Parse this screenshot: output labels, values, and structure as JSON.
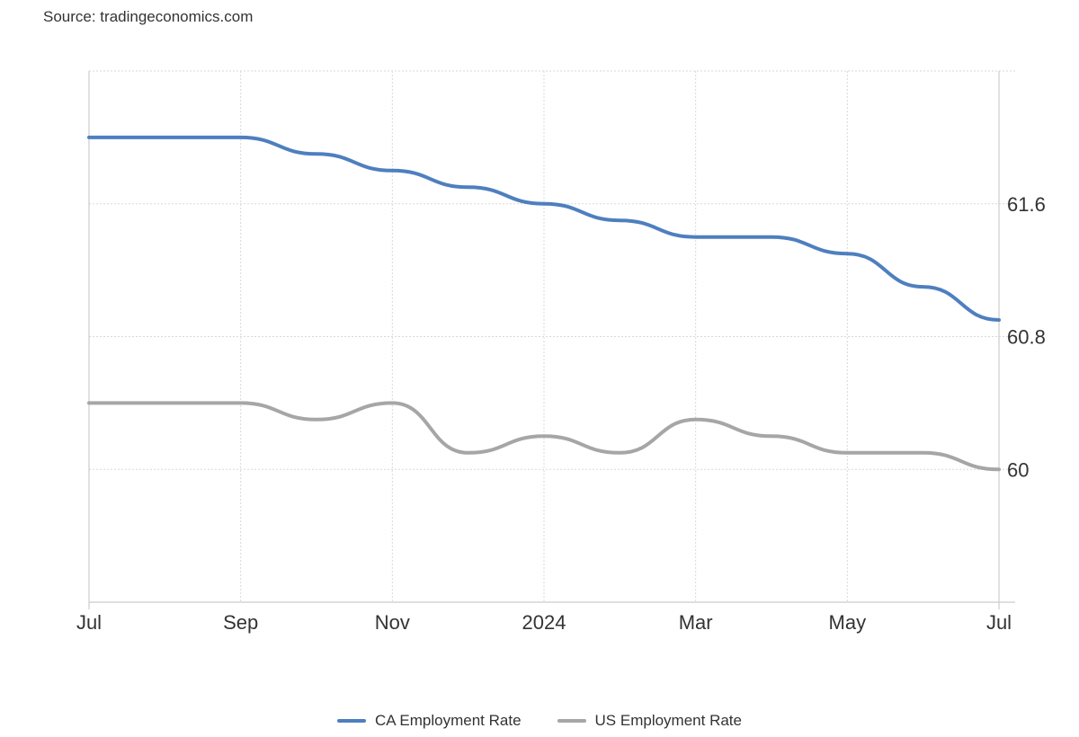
{
  "source_text": "Source: tradingeconomics.com",
  "colors": {
    "ca": "#4e7fbf",
    "us": "#a6a6a6",
    "grid": "#d9d9d9",
    "axis": "#cccccc"
  },
  "chart_data": {
    "type": "line",
    "title": "",
    "xlabel": "",
    "ylabel": "",
    "x": [
      "2023-07",
      "2023-08",
      "2023-09",
      "2023-10",
      "2023-11",
      "2023-12",
      "2024-01",
      "2024-02",
      "2024-03",
      "2024-04",
      "2024-05",
      "2024-06",
      "2024-07"
    ],
    "x_ticks": [
      "Jul",
      "Sep",
      "Nov",
      "2024",
      "Mar",
      "May",
      "Jul"
    ],
    "y_ticks": [
      "61.6",
      "60.8",
      "60"
    ],
    "ylim": [
      59.2,
      62.4
    ],
    "grid": true,
    "legend_position": "bottom",
    "series": [
      {
        "name": "CA Employment Rate",
        "color": "#4e7fbf",
        "values": [
          62.0,
          62.0,
          62.0,
          61.9,
          61.8,
          61.7,
          61.6,
          61.5,
          61.4,
          61.4,
          61.3,
          61.1,
          60.9
        ]
      },
      {
        "name": "US Employment Rate",
        "color": "#a6a6a6",
        "values": [
          60.4,
          60.4,
          60.4,
          60.3,
          60.4,
          60.1,
          60.2,
          60.1,
          60.3,
          60.2,
          60.1,
          60.1,
          60.0
        ]
      }
    ]
  }
}
